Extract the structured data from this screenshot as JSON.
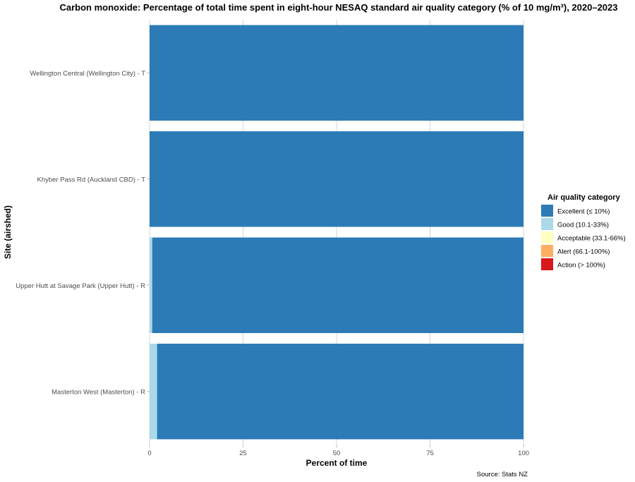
{
  "chart_data": {
    "type": "bar",
    "orientation": "horizontal",
    "stacked": true,
    "title": "Carbon monoxide: Percentage of total time spent in eight-hour NESAQ standard air quality category (% of 10 mg/m³), 2020–2023",
    "xlabel": "Percent of time",
    "ylabel": "Site (airshed)",
    "xlim": [
      0,
      100
    ],
    "x_ticks": [
      "0",
      "25",
      "50",
      "75",
      "100"
    ],
    "categories": [
      "Wellington Central (Wellington City) - T",
      "Khyber Pass Rd (Auckland CBD) - T",
      "Upper Hutt at Savage Park (Upper Hutt) - R",
      "Masterton West (Masterton) - R"
    ],
    "series": [
      {
        "name": "Good (10.1-33%)",
        "color": "#abd9e9",
        "values": [
          0,
          0,
          0.7,
          2.0
        ]
      },
      {
        "name": "Excellent (≤ 10%)",
        "color": "#2c7bb6",
        "values": [
          100,
          100,
          99.3,
          98.0
        ]
      }
    ],
    "legend": {
      "title": "Air quality category",
      "position": "right",
      "entries": [
        {
          "label": "Excellent (≤ 10%)",
          "color": "#2c7bb6"
        },
        {
          "label": "Good (10.1-33%)",
          "color": "#abd9e9"
        },
        {
          "label": "Acceptable (33.1-66%)",
          "color": "#ffffbf"
        },
        {
          "label": "Alert (66.1-100%)",
          "color": "#fdae61"
        },
        {
          "label": "Action (> 100%)",
          "color": "#d7191c"
        }
      ]
    },
    "grid": true,
    "caption": "Source: Stats NZ"
  }
}
